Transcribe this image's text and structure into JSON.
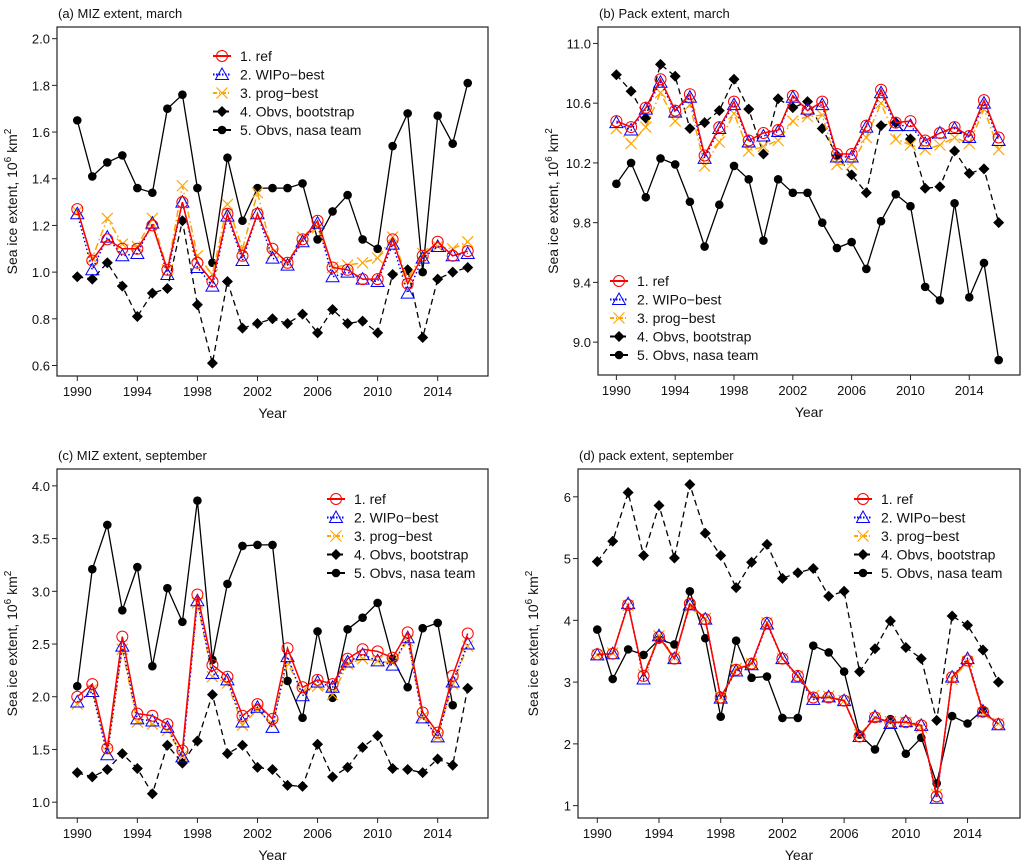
{
  "chart_data": [
    {
      "type": "line",
      "panel": "a",
      "title": "(a) MIZ extent, march",
      "xlabel": "Year",
      "ylabel": "Sea ice extent, 10^6 km^2",
      "ylabel_parts": {
        "main": "Sea ice extent, 10",
        "sup": "6",
        "unit": " km",
        "unit_sup": "2"
      },
      "x": [
        1990,
        1991,
        1992,
        1993,
        1994,
        1995,
        1996,
        1997,
        1998,
        1999,
        2000,
        2001,
        2002,
        2003,
        2004,
        2005,
        2006,
        2007,
        2008,
        2009,
        2010,
        2011,
        2012,
        2013,
        2014,
        2015,
        2016
      ],
      "xticks": [
        1990,
        1994,
        1998,
        2002,
        2006,
        2010,
        2014
      ],
      "yticks": [
        0.6,
        0.8,
        1.0,
        1.2,
        1.4,
        1.6,
        1.8,
        2.0
      ],
      "ytick_labels": [
        "0.6",
        "0.8",
        "1.0",
        "1.2",
        "1.4",
        "1.6",
        "1.8",
        "2.0"
      ],
      "ylim": [
        0.555,
        2.05
      ],
      "xlim": [
        1988.65,
        2017.35
      ],
      "legend_position": "top-center",
      "series": [
        {
          "name": "1. ref",
          "key": "ref",
          "values": [
            1.27,
            1.05,
            1.14,
            1.1,
            1.1,
            1.2,
            1.01,
            1.3,
            1.04,
            0.96,
            1.25,
            1.07,
            1.25,
            1.1,
            1.04,
            1.14,
            1.22,
            1.02,
            1.01,
            0.97,
            0.97,
            1.14,
            0.95,
            1.07,
            1.13,
            1.07,
            1.09
          ]
        },
        {
          "name": "2. WIPo−best",
          "key": "wipo",
          "values": [
            1.25,
            1.01,
            1.15,
            1.07,
            1.08,
            1.21,
            0.99,
            1.3,
            1.02,
            0.94,
            1.24,
            1.05,
            1.25,
            1.06,
            1.03,
            1.13,
            1.21,
            0.98,
            1.0,
            0.97,
            0.96,
            1.12,
            0.91,
            1.06,
            1.11,
            1.07,
            1.08
          ]
        },
        {
          "name": "3. prog−best",
          "key": "prog",
          "values": [
            1.26,
            1.06,
            1.23,
            1.12,
            1.11,
            1.23,
            1.01,
            1.37,
            1.07,
            0.99,
            1.29,
            1.1,
            1.34,
            1.08,
            1.04,
            1.15,
            1.19,
            1.02,
            1.03,
            1.04,
            1.06,
            1.15,
            0.97,
            1.08,
            1.11,
            1.1,
            1.13
          ]
        },
        {
          "name": "4. Obvs, bootstrap",
          "key": "boot",
          "values": [
            0.98,
            0.97,
            1.04,
            0.94,
            0.81,
            0.91,
            0.93,
            1.22,
            0.86,
            0.61,
            0.96,
            0.76,
            0.78,
            0.8,
            0.78,
            0.82,
            0.74,
            0.84,
            0.78,
            0.79,
            0.74,
            0.99,
            1.01,
            0.72,
            0.97,
            1.0,
            1.02
          ]
        },
        {
          "name": "5. Obvs, nasa team",
          "key": "nasa",
          "values": [
            1.65,
            1.41,
            1.47,
            1.5,
            1.36,
            1.34,
            1.7,
            1.76,
            1.36,
            1.04,
            1.49,
            1.22,
            1.36,
            1.36,
            1.36,
            1.38,
            1.14,
            1.26,
            1.33,
            1.14,
            1.1,
            1.54,
            1.68,
            1.0,
            1.67,
            1.55,
            1.81
          ]
        }
      ]
    },
    {
      "type": "line",
      "panel": "b",
      "title": "(b) Pack extent, march",
      "xlabel": "Year",
      "ylabel": "Sea ice extent, 10^6 km^2",
      "ylabel_parts": {
        "main": "Sea ice extent, 10",
        "sup": "6",
        "unit": " km",
        "unit_sup": "2"
      },
      "x": [
        1990,
        1991,
        1992,
        1993,
        1994,
        1995,
        1996,
        1997,
        1998,
        1999,
        2000,
        2001,
        2002,
        2003,
        2004,
        2005,
        2006,
        2007,
        2008,
        2009,
        2010,
        2011,
        2012,
        2013,
        2014,
        2015,
        2016
      ],
      "xticks": [
        1990,
        1994,
        1998,
        2002,
        2006,
        2010,
        2014
      ],
      "yticks": [
        9.0,
        9.4,
        9.8,
        10.2,
        10.6,
        11.0
      ],
      "ytick_labels": [
        "9.0",
        "9.4",
        "9.8",
        "10.2",
        "10.6",
        "11.0"
      ],
      "ylim": [
        8.78,
        11.11
      ],
      "xlim": [
        1988.75,
        2017.45
      ],
      "legend_position": "bottom-left",
      "series": [
        {
          "name": "1. ref",
          "key": "ref",
          "values": [
            10.48,
            10.44,
            10.57,
            10.76,
            10.55,
            10.66,
            10.25,
            10.44,
            10.61,
            10.35,
            10.4,
            10.42,
            10.65,
            10.55,
            10.61,
            10.26,
            10.26,
            10.45,
            10.69,
            10.47,
            10.48,
            10.35,
            10.4,
            10.44,
            10.38,
            10.62,
            10.37
          ]
        },
        {
          "name": "2. WIPo−best",
          "key": "wipo",
          "values": [
            10.47,
            10.42,
            10.56,
            10.74,
            10.54,
            10.64,
            10.23,
            10.43,
            10.59,
            10.34,
            10.38,
            10.41,
            10.64,
            10.56,
            10.59,
            10.24,
            10.24,
            10.44,
            10.67,
            10.45,
            10.45,
            10.33,
            10.4,
            10.43,
            10.37,
            10.6,
            10.35
          ]
        },
        {
          "name": "3. prog−best",
          "key": "prog",
          "values": [
            10.43,
            10.33,
            10.44,
            10.67,
            10.48,
            10.59,
            10.18,
            10.34,
            10.53,
            10.28,
            10.31,
            10.35,
            10.48,
            10.51,
            10.52,
            10.19,
            10.19,
            10.37,
            10.6,
            10.36,
            10.32,
            10.29,
            10.32,
            10.37,
            10.33,
            10.56,
            10.29
          ]
        },
        {
          "name": "4. Obvs, bootstrap",
          "key": "boot",
          "values": [
            10.79,
            10.68,
            10.5,
            10.86,
            10.78,
            10.43,
            10.47,
            10.55,
            10.76,
            10.56,
            10.26,
            10.63,
            10.57,
            10.61,
            10.43,
            10.25,
            10.12,
            10.0,
            10.45,
            10.47,
            10.36,
            10.03,
            10.04,
            10.28,
            10.13,
            10.16,
            9.8
          ]
        },
        {
          "name": "5. Obvs, nasa team",
          "key": "nasa",
          "values": [
            10.06,
            10.2,
            9.97,
            10.23,
            10.19,
            9.94,
            9.64,
            9.92,
            10.18,
            10.09,
            9.68,
            10.09,
            10.0,
            10.0,
            9.8,
            9.63,
            9.67,
            9.49,
            9.81,
            9.99,
            9.91,
            9.37,
            9.28,
            9.93,
            9.3,
            9.53,
            8.88
          ]
        }
      ]
    },
    {
      "type": "line",
      "panel": "c",
      "title": "(c) MIZ extent, september",
      "xlabel": "Year",
      "ylabel": "Sea ice extent, 10^6 km^2",
      "ylabel_parts": {
        "main": "Sea ice extent, 10",
        "sup": "6",
        "unit": " km",
        "unit_sup": "2"
      },
      "x": [
        1990,
        1991,
        1992,
        1993,
        1994,
        1995,
        1996,
        1997,
        1998,
        1999,
        2000,
        2001,
        2002,
        2003,
        2004,
        2005,
        2006,
        2007,
        2008,
        2009,
        2010,
        2011,
        2012,
        2013,
        2014,
        2015,
        2016
      ],
      "xticks": [
        1990,
        1994,
        1998,
        2002,
        2006,
        2010,
        2014
      ],
      "yticks": [
        1.0,
        1.5,
        2.0,
        2.5,
        3.0,
        3.5,
        4.0
      ],
      "ytick_labels": [
        "1.0",
        "1.5",
        "2.0",
        "2.5",
        "3.0",
        "3.5",
        "4.0"
      ],
      "ylim": [
        0.85,
        4.16
      ],
      "xlim": [
        1988.65,
        2017.35
      ],
      "legend_position": "top-right",
      "series": [
        {
          "name": "1. ref",
          "key": "ref",
          "values": [
            2.0,
            2.12,
            1.51,
            2.57,
            1.84,
            1.82,
            1.74,
            1.49,
            2.97,
            2.3,
            2.19,
            1.82,
            1.93,
            1.79,
            2.46,
            2.09,
            2.16,
            2.12,
            2.36,
            2.45,
            2.43,
            2.37,
            2.61,
            1.85,
            1.66,
            2.2,
            2.6
          ]
        },
        {
          "name": "2. WIPo−best",
          "key": "wipo",
          "values": [
            1.95,
            2.05,
            1.45,
            2.48,
            1.79,
            1.77,
            1.71,
            1.43,
            2.91,
            2.22,
            2.16,
            1.76,
            1.9,
            1.71,
            2.38,
            2.01,
            2.14,
            2.09,
            2.33,
            2.4,
            2.34,
            2.3,
            2.56,
            1.8,
            1.62,
            2.14,
            2.5
          ]
        },
        {
          "name": "3. prog−best",
          "key": "prog",
          "values": [
            1.93,
            2.07,
            1.48,
            2.45,
            1.76,
            1.74,
            1.68,
            1.44,
            2.89,
            2.19,
            2.13,
            1.73,
            1.88,
            1.74,
            2.32,
            2.05,
            2.1,
            2.02,
            2.31,
            2.36,
            2.34,
            2.32,
            2.53,
            1.81,
            1.62,
            2.12,
            2.48
          ]
        },
        {
          "name": "4. Obvs, bootstrap",
          "key": "boot",
          "values": [
            1.28,
            1.24,
            1.31,
            1.46,
            1.32,
            1.08,
            1.54,
            1.37,
            1.58,
            2.02,
            1.46,
            1.54,
            1.33,
            1.31,
            1.16,
            1.15,
            1.55,
            1.24,
            1.33,
            1.52,
            1.63,
            1.32,
            1.31,
            1.28,
            1.41,
            1.35,
            2.08
          ]
        },
        {
          "name": "5. Obvs, nasa team",
          "key": "nasa",
          "values": [
            2.1,
            3.21,
            3.63,
            2.82,
            3.23,
            2.29,
            3.03,
            2.71,
            3.86,
            2.35,
            3.07,
            3.43,
            3.44,
            3.44,
            2.15,
            1.8,
            2.62,
            1.99,
            2.64,
            2.75,
            2.89,
            2.36,
            2.09,
            2.65,
            2.7,
            1.92,
            null
          ]
        }
      ]
    },
    {
      "type": "line",
      "panel": "d",
      "title": "(d) pack extent, september",
      "xlabel": "Year",
      "ylabel": "Sea ice extent, 10^6 km^2",
      "ylabel_parts": {
        "main": "Sea ice extent, 10",
        "sup": "6",
        "unit": " km",
        "unit_sup": "2"
      },
      "x": [
        1990,
        1991,
        1992,
        1993,
        1994,
        1995,
        1996,
        1997,
        1998,
        1999,
        2000,
        2001,
        2002,
        2003,
        2004,
        2005,
        2006,
        2007,
        2008,
        2009,
        2010,
        2011,
        2012,
        2013,
        2014,
        2015,
        2016
      ],
      "xticks": [
        1990,
        1994,
        1998,
        2002,
        2006,
        2010,
        2014
      ],
      "yticks": [
        1,
        2,
        3,
        4,
        5,
        6
      ],
      "ytick_labels": [
        "1",
        "2",
        "3",
        "4",
        "5",
        "6"
      ],
      "ylim": [
        0.8,
        6.45
      ],
      "xlim": [
        1988.75,
        2017.4
      ],
      "legend_position": "top-right",
      "series": [
        {
          "name": "1. ref",
          "key": "ref",
          "values": [
            3.45,
            3.46,
            4.25,
            3.1,
            3.73,
            3.38,
            4.27,
            4.02,
            2.75,
            3.2,
            3.3,
            3.96,
            3.38,
            3.1,
            2.75,
            2.75,
            2.7,
            2.12,
            2.43,
            2.35,
            2.35,
            2.3,
            1.15,
            3.08,
            3.35,
            2.52,
            2.32
          ]
        },
        {
          "name": "2. WIPo−best",
          "key": "wipo",
          "values": [
            3.44,
            3.46,
            4.27,
            3.05,
            3.75,
            3.38,
            4.25,
            4.02,
            2.74,
            3.18,
            3.28,
            3.94,
            3.38,
            3.08,
            2.72,
            2.76,
            2.7,
            2.12,
            2.44,
            2.33,
            2.36,
            2.3,
            1.12,
            3.08,
            3.38,
            2.53,
            2.31
          ]
        },
        {
          "name": "3. prog−best",
          "key": "prog",
          "values": [
            3.44,
            3.47,
            4.24,
            3.12,
            3.75,
            3.4,
            4.22,
            4.03,
            2.75,
            3.22,
            3.3,
            3.96,
            3.38,
            3.1,
            2.78,
            2.77,
            2.7,
            2.15,
            2.42,
            2.36,
            2.35,
            2.27,
            1.18,
            3.04,
            3.33,
            2.5,
            2.33
          ]
        },
        {
          "name": "4. Obvs, bootstrap",
          "key": "boot",
          "values": [
            4.95,
            5.28,
            6.07,
            5.05,
            5.86,
            5.01,
            6.2,
            5.41,
            5.05,
            4.53,
            4.94,
            5.23,
            4.68,
            4.77,
            4.84,
            4.39,
            4.47,
            3.17,
            3.54,
            3.99,
            3.56,
            3.38,
            2.38,
            4.07,
            3.92,
            3.52,
            3.0
          ]
        },
        {
          "name": "5. Obvs, nasa team",
          "key": "nasa",
          "values": [
            3.85,
            3.05,
            3.53,
            3.44,
            3.69,
            3.61,
            4.47,
            3.71,
            2.44,
            3.67,
            3.07,
            3.09,
            2.42,
            2.42,
            3.59,
            3.48,
            3.17,
            2.15,
            1.91,
            2.4,
            1.84,
            2.1,
            1.36,
            2.45,
            2.33,
            2.55,
            null
          ]
        }
      ]
    }
  ],
  "styles": {
    "ref": {
      "color": "#ff0000",
      "marker": "circle-open",
      "dash": "solid"
    },
    "wipo": {
      "color": "#0000ff",
      "marker": "triangle-open",
      "dash": "dotted"
    },
    "prog": {
      "color": "#ffa500",
      "marker": "x",
      "dash": "dashdot"
    },
    "boot": {
      "color": "#000000",
      "marker": "diamond-filled",
      "dash": "dashed"
    },
    "nasa": {
      "color": "#000000",
      "marker": "circle-filled",
      "dash": "solid"
    }
  }
}
